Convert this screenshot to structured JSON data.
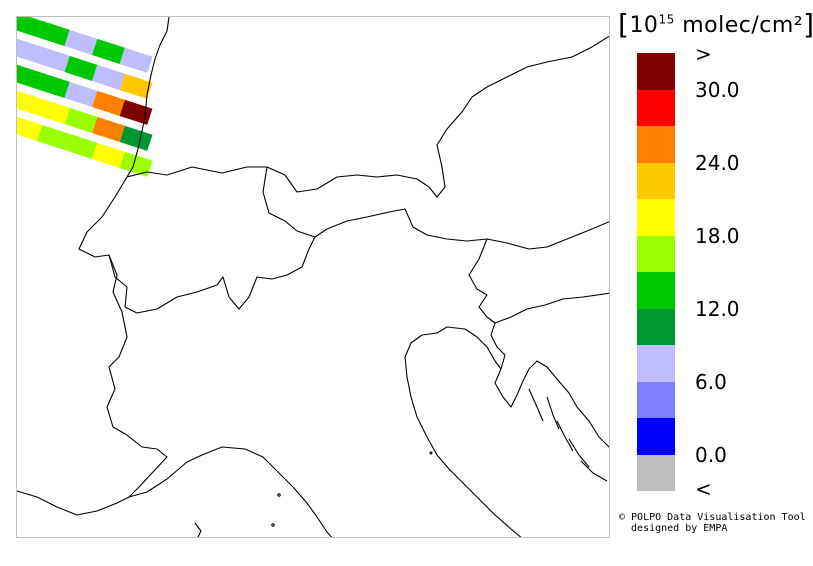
{
  "legend": {
    "unit_prefix": "10",
    "unit_exp": "15",
    "unit_suffix": " molec/cm²",
    "colors": [
      "#7f0000",
      "#ff0000",
      "#ff7f00",
      "#ffc800",
      "#ffff00",
      "#9bff00",
      "#00c800",
      "#009632",
      "#bebeff",
      "#8080ff",
      "#0000ff",
      "#bebebe"
    ],
    "tick_labels": [
      ">",
      "30.0",
      "24.0",
      "18.0",
      "12.0",
      "6.0",
      "0.0",
      "<"
    ]
  },
  "credit": {
    "line1": "© POLPO Data Visualisation Tool",
    "line2": "  designed by EMPA"
  },
  "swaths": [
    [
      "#bebeff",
      "#00c800",
      "#00c800",
      "#bebeff",
      "#00c800",
      "#bebeff"
    ],
    [
      "#bebeff",
      "#bebeff",
      "#bebeff",
      "#00c800",
      "#bebeff",
      "#ffc800"
    ],
    [
      "#8080ff",
      "#00c800",
      "#00c800",
      "#bebeff",
      "#ff7f00",
      "#7f0000"
    ],
    [
      "#9bff00",
      "#ffff00",
      "#ffff00",
      "#9bff00",
      "#ff7f00",
      "#009632"
    ],
    [
      "#9bff00",
      "#ffff00",
      "#9bff00",
      "#9bff00",
      "#ffff00",
      "#9bff00"
    ]
  ]
}
